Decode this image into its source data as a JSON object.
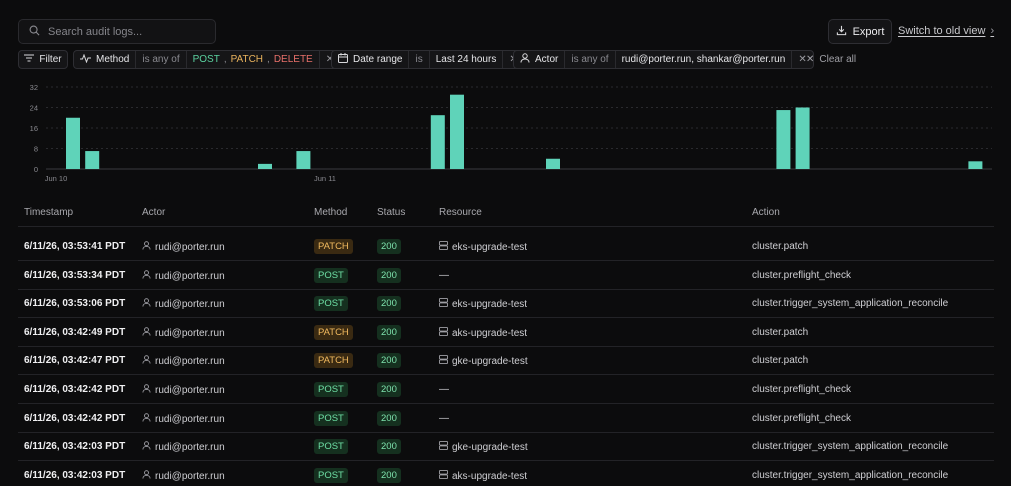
{
  "search": {
    "placeholder": "Search audit logs..."
  },
  "header": {
    "export_label": "Export",
    "old_view_label": "Switch to old view"
  },
  "filters": {
    "filter_label": "Filter",
    "method": {
      "key": "Method",
      "op": "is any of",
      "values": [
        "POST",
        "PATCH",
        "DELETE"
      ]
    },
    "date": {
      "key": "Date range",
      "op": "is",
      "value": "Last 24 hours"
    },
    "actor": {
      "key": "Actor",
      "op": "is any of",
      "value": "rudi@porter.run, shankar@porter.run"
    },
    "clear_label": "Clear all"
  },
  "chart_data": {
    "type": "bar",
    "yticks": [
      "32",
      "24",
      "16",
      "8",
      "0"
    ],
    "ylim": [
      0,
      32
    ],
    "xlabels": [
      "Jun 10",
      "Jun 11"
    ],
    "bars": [
      {
        "slot": 0,
        "value": 20
      },
      {
        "slot": 1,
        "value": 7
      },
      {
        "slot": 10,
        "value": 2
      },
      {
        "slot": 12,
        "value": 7
      },
      {
        "slot": 19,
        "value": 21
      },
      {
        "slot": 20,
        "value": 29
      },
      {
        "slot": 25,
        "value": 4
      },
      {
        "slot": 37,
        "value": 23
      },
      {
        "slot": 38,
        "value": 24
      },
      {
        "slot": 47,
        "value": 3
      }
    ],
    "bar_color": "#5fd3b9",
    "grid": true
  },
  "table": {
    "columns": [
      "Timestamp",
      "Actor",
      "Method",
      "Status",
      "Resource",
      "Action"
    ],
    "rows": [
      {
        "ts": "6/11/26, 03:53:41 PDT",
        "actor": "rudi@porter.run",
        "method": "PATCH",
        "status": "200",
        "resource": "eks-upgrade-test",
        "action": "cluster.patch"
      },
      {
        "ts": "6/11/26, 03:53:34 PDT",
        "actor": "rudi@porter.run",
        "method": "POST",
        "status": "200",
        "resource": "—",
        "action": "cluster.preflight_check"
      },
      {
        "ts": "6/11/26, 03:53:06 PDT",
        "actor": "rudi@porter.run",
        "method": "POST",
        "status": "200",
        "resource": "eks-upgrade-test",
        "action": "cluster.trigger_system_application_reconcile"
      },
      {
        "ts": "6/11/26, 03:42:49 PDT",
        "actor": "rudi@porter.run",
        "method": "PATCH",
        "status": "200",
        "resource": "aks-upgrade-test",
        "action": "cluster.patch"
      },
      {
        "ts": "6/11/26, 03:42:47 PDT",
        "actor": "rudi@porter.run",
        "method": "PATCH",
        "status": "200",
        "resource": "gke-upgrade-test",
        "action": "cluster.patch"
      },
      {
        "ts": "6/11/26, 03:42:42 PDT",
        "actor": "rudi@porter.run",
        "method": "POST",
        "status": "200",
        "resource": "—",
        "action": "cluster.preflight_check"
      },
      {
        "ts": "6/11/26, 03:42:42 PDT",
        "actor": "rudi@porter.run",
        "method": "POST",
        "status": "200",
        "resource": "—",
        "action": "cluster.preflight_check"
      },
      {
        "ts": "6/11/26, 03:42:03 PDT",
        "actor": "rudi@porter.run",
        "method": "POST",
        "status": "200",
        "resource": "gke-upgrade-test",
        "action": "cluster.trigger_system_application_reconcile"
      },
      {
        "ts": "6/11/26, 03:42:03 PDT",
        "actor": "rudi@porter.run",
        "method": "POST",
        "status": "200",
        "resource": "aks-upgrade-test",
        "action": "cluster.trigger_system_application_reconcile"
      }
    ]
  }
}
